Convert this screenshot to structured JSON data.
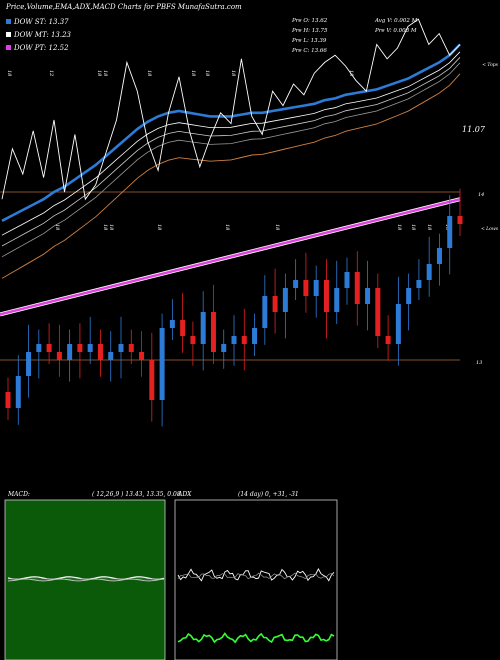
{
  "header": {
    "title": "Price,Volume,EMA,ADX,MACD Charts for PBFS MunafaSutra.com",
    "legend": [
      "DOW ST: 13.37",
      "DOW MT: 13.23",
      "DOW PT: 12.52"
    ],
    "stats": [
      "Pre   O: 13.62",
      "Pre   H: 13.75",
      "Pre   L: 13.39",
      "Pre   C: 13.66",
      "Avg V: 0.002  M",
      "Pre   V: 0.008  M"
    ]
  },
  "colors": {
    "up": "#2c7bd6",
    "down": "#e52020",
    "ema_short": "#2c7bd6",
    "ema_long": "#e040e0",
    "price_line": "#ffffff",
    "macd_bg": "#0a5a0a",
    "adx_plus": "#33ff33"
  },
  "chart_data": {
    "type": "candlestick",
    "edge_label_top": "< Tops",
    "edge_label_mid": "< Lows",
    "ema_last_label": "11.07",
    "ema_ref_label": "14",
    "candle_ref_label": "13",
    "top_date_labels": [
      "18",
      "12",
      "18",
      "18",
      "18",
      "18",
      "18",
      "18",
      "18"
    ],
    "mid_date_labels": [
      "18",
      "18",
      "18",
      "18",
      "18",
      "18",
      "18",
      "18",
      "18",
      "18"
    ],
    "price_closes": [
      13.02,
      13.3,
      13.16,
      13.4,
      13.14,
      13.46,
      13.06,
      13.38,
      13.02,
      13.1,
      13.28,
      13.46,
      13.78,
      13.62,
      13.34,
      13.18,
      13.5,
      13.7,
      13.4,
      13.2,
      13.36,
      13.5,
      13.44,
      13.8,
      13.48,
      13.38,
      13.62,
      13.54,
      13.66,
      13.6,
      13.72,
      13.78,
      13.82,
      13.76,
      13.68,
      13.62,
      13.88,
      13.8,
      13.86,
      13.98,
      14.02,
      13.88,
      13.94,
      13.82,
      13.88
    ],
    "ema_short": [
      12.9,
      12.93,
      12.96,
      12.99,
      13.02,
      13.06,
      13.09,
      13.13,
      13.17,
      13.21,
      13.26,
      13.31,
      13.36,
      13.41,
      13.45,
      13.48,
      13.5,
      13.51,
      13.5,
      13.49,
      13.48,
      13.48,
      13.48,
      13.49,
      13.5,
      13.5,
      13.51,
      13.52,
      13.53,
      13.54,
      13.55,
      13.57,
      13.58,
      13.6,
      13.61,
      13.62,
      13.63,
      13.65,
      13.67,
      13.69,
      13.72,
      13.75,
      13.78,
      13.82,
      13.88
    ],
    "ema_long_start": 12.38,
    "ema_long_end": 13.02
  },
  "macd": {
    "title": "MACD:",
    "params": "( 12,26,9 ) 13.43,  13.35,  0.08"
  },
  "adx": {
    "title": "ADX",
    "params": "(14  day) 0,  +31,  -31"
  }
}
